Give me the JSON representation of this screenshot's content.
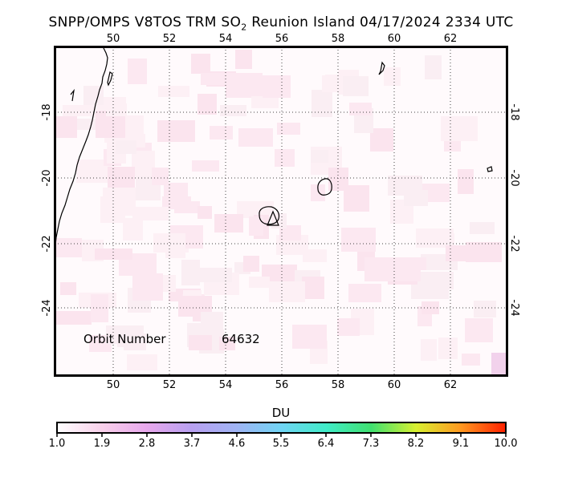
{
  "title": {
    "prefix": "SNPP/OMPS V8TOS TRM SO",
    "subscript": "2",
    "suffix": " Reunion Island 04/17/2024 2334 UTC"
  },
  "map": {
    "lon_ticks": [
      "50",
      "52",
      "54",
      "56",
      "58",
      "60",
      "62"
    ],
    "lat_ticks": [
      "-18",
      "-20",
      "-22",
      "-24"
    ],
    "lon_range": [
      48.1,
      64.0
    ],
    "lat_range": [
      -26.2,
      -16.0
    ]
  },
  "orbit": {
    "label": "Orbit Number",
    "value": "64632"
  },
  "colorbar": {
    "label": "DU",
    "ticks": [
      "1.0",
      "1.9",
      "2.8",
      "3.7",
      "4.6",
      "5.5",
      "6.4",
      "7.3",
      "8.2",
      "9.1",
      "10.0"
    ]
  },
  "colors": {
    "background_tint": "#fdf3f7",
    "grid": "#444444",
    "frame": "#000000"
  }
}
